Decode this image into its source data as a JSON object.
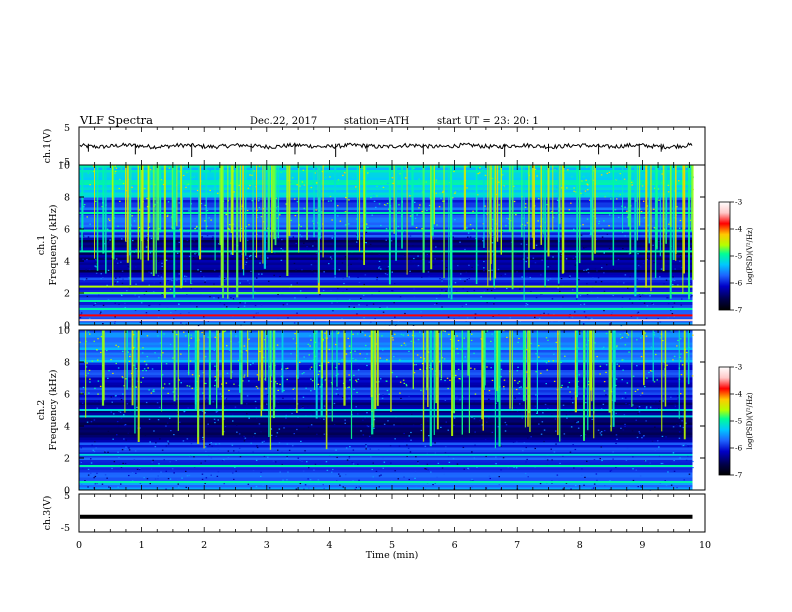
{
  "header": {
    "title": "VLF  Spectra",
    "date": "Dec.22, 2017",
    "station": "station=ATH",
    "start": "start  UT  =    23: 20: 1"
  },
  "colors": {
    "background": "#ffffff",
    "axes": "#000000",
    "waveform": "#000000",
    "colormap": [
      "#000000",
      "#00004a",
      "#0000c8",
      "#1e64ff",
      "#00c8ff",
      "#00ff96",
      "#b4ff00",
      "#ffc800",
      "#ff0000",
      "#ffc8c8",
      "#ffffff"
    ]
  },
  "chart_data": [
    {
      "type": "line",
      "name": "ch1-waveform",
      "ylabel": "ch.1(V)",
      "xlim": [
        0,
        10
      ],
      "ylim": [
        -5,
        5
      ],
      "yticks": [
        "5",
        "-5"
      ],
      "baseline": 0,
      "note_values": "noisy trace near 0 V with occasional negative spikes"
    },
    {
      "type": "heatmap",
      "name": "ch1-spectrogram",
      "ylabel_top": "ch.1",
      "ylabel": "Frequency  (kHz)",
      "xlim": [
        0,
        10
      ],
      "ylim": [
        0,
        10
      ],
      "yticks": [
        "0",
        "2",
        "4",
        "6",
        "8",
        "10"
      ],
      "colorbar": {
        "label": "log(PSD)(V²/Hz)",
        "range": [
          -7,
          -3
        ],
        "ticks": [
          "-3",
          "-4",
          "-5",
          "-6",
          "-7"
        ]
      },
      "bands": [
        {
          "f_khz": 0.3,
          "log_psd": -3.3
        },
        {
          "f_khz": 0.6,
          "log_psd": -3.8
        },
        {
          "f_khz": 1.0,
          "log_psd": -5.0
        },
        {
          "f_khz": 1.5,
          "log_psd": -5.0
        },
        {
          "f_khz": 2.0,
          "log_psd": -4.8
        },
        {
          "f_khz": 2.4,
          "log_psd": -4.6
        },
        {
          "f_khz": 4.6,
          "log_psd": -5.0
        },
        {
          "f_khz": 5.9,
          "log_psd": -5.0
        },
        {
          "f_khz": 7.0,
          "log_psd": -5.0
        }
      ]
    },
    {
      "type": "heatmap",
      "name": "ch2-spectrogram",
      "ylabel_top": "ch.2",
      "ylabel": "Frequency  (kHz)",
      "xlim": [
        0,
        10
      ],
      "ylim": [
        0,
        10
      ],
      "yticks": [
        "0",
        "2",
        "4",
        "6",
        "8",
        "10"
      ],
      "colorbar": {
        "label": "log(PSD)(V²/Hz)",
        "range": [
          -7,
          -3
        ],
        "ticks": [
          "-3",
          "-4",
          "-5",
          "-6",
          "-7"
        ]
      },
      "bands": [
        {
          "f_khz": 0.5,
          "log_psd": -5.0
        },
        {
          "f_khz": 1.5,
          "log_psd": -5.0
        },
        {
          "f_khz": 2.2,
          "log_psd": -5.2
        },
        {
          "f_khz": 4.6,
          "log_psd": -5.2
        },
        {
          "f_khz": 5.0,
          "log_psd": -5.2
        }
      ]
    },
    {
      "type": "line",
      "name": "ch3-waveform",
      "ylabel": "ch.3(V)",
      "xlim": [
        0,
        10
      ],
      "ylim": [
        -5,
        5
      ],
      "yticks": [
        "5",
        "-5"
      ],
      "baseline": -1,
      "note_values": "thick flat trace near -1 V"
    }
  ],
  "xaxis": {
    "label": "Time  (min)",
    "ticks": [
      "0",
      "1",
      "2",
      "3",
      "4",
      "5",
      "6",
      "7",
      "8",
      "9",
      "10"
    ],
    "data_end_min": 9.8
  }
}
